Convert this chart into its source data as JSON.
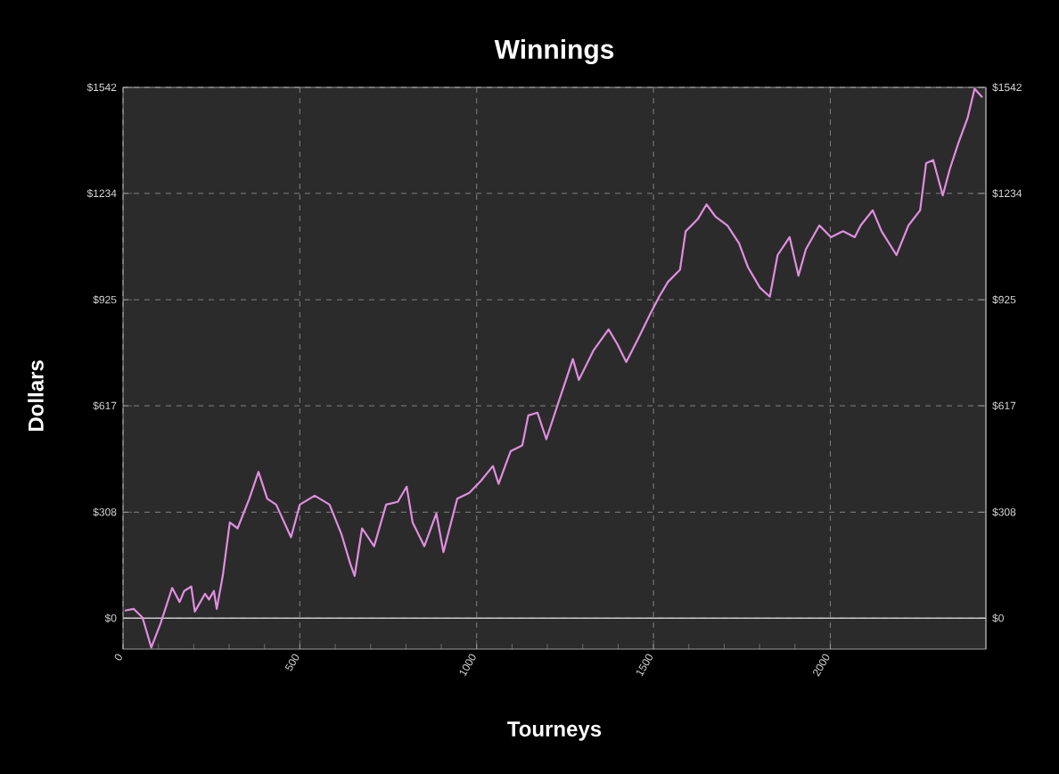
{
  "chart_data": {
    "type": "line",
    "title": "Winnings",
    "xlabel": "Tourneys",
    "ylabel": "Dollars",
    "xlim": [
      0,
      2440
    ],
    "xticks": [
      0,
      500,
      1000,
      1500,
      2000
    ],
    "ylim": [
      -90,
      1542
    ],
    "yticks": [
      {
        "value": 0,
        "label": "$0"
      },
      {
        "value": 308,
        "label": "$308"
      },
      {
        "value": 617,
        "label": "$617"
      },
      {
        "value": 925,
        "label": "$925"
      },
      {
        "value": 1234,
        "label": "$1234"
      },
      {
        "value": 1542,
        "label": "$1542"
      }
    ],
    "y2lim": [
      -90,
      1542
    ],
    "y2ticks": [
      {
        "value": 0,
        "label": "$0"
      },
      {
        "value": 308,
        "label": "$308"
      },
      {
        "value": 617,
        "label": "$617"
      },
      {
        "value": 925,
        "label": "$925"
      },
      {
        "value": 1234,
        "label": "$1234"
      },
      {
        "value": 1542,
        "label": "$1542"
      }
    ],
    "grid": true,
    "marker": "none",
    "line_style": "solid",
    "ref_lines": [
      {
        "axis": "y",
        "value": 0,
        "color": "#c8c8c8",
        "line_style": "solid"
      }
    ],
    "x": [
      5,
      30,
      55,
      80,
      106,
      139,
      160,
      173,
      193,
      203,
      232,
      243,
      257,
      265,
      282,
      302,
      324,
      357,
      383,
      408,
      433,
      475,
      500,
      542,
      584,
      618,
      643,
      655,
      676,
      710,
      744,
      777,
      802,
      819,
      852,
      886,
      906,
      945,
      979,
      1012,
      1046,
      1062,
      1096,
      1129,
      1146,
      1172,
      1197,
      1230,
      1255,
      1272,
      1289,
      1331,
      1373,
      1398,
      1423,
      1457,
      1490,
      1516,
      1541,
      1575,
      1591,
      1625,
      1650,
      1675,
      1709,
      1742,
      1767,
      1801,
      1829,
      1851,
      1885,
      1910,
      1931,
      1969,
      2002,
      2036,
      2069,
      2086,
      2120,
      2145,
      2187,
      2221,
      2254,
      2271,
      2291,
      2318,
      2338,
      2363,
      2388,
      2408,
      2430
    ],
    "series": [
      {
        "color": "#e08ee0",
        "values": [
          22,
          27,
          2,
          -85,
          -16,
          88,
          47,
          79,
          92,
          19,
          71,
          54,
          79,
          27,
          123,
          278,
          261,
          347,
          425,
          347,
          330,
          235,
          330,
          356,
          330,
          243,
          157,
          123,
          261,
          209,
          330,
          338,
          382,
          278,
          209,
          304,
          192,
          347,
          364,
          399,
          442,
          390,
          485,
          502,
          589,
          597,
          520,
          623,
          700,
          753,
          692,
          779,
          839,
          796,
          744,
          813,
          882,
          934,
          977,
          1012,
          1124,
          1159,
          1202,
          1167,
          1141,
          1089,
          1020,
          960,
          934,
          1055,
          1107,
          995,
          1072,
          1141,
          1107,
          1124,
          1107,
          1141,
          1185,
          1124,
          1055,
          1141,
          1185,
          1322,
          1331,
          1228,
          1305,
          1383,
          1452,
          1538,
          1513
        ]
      }
    ]
  }
}
